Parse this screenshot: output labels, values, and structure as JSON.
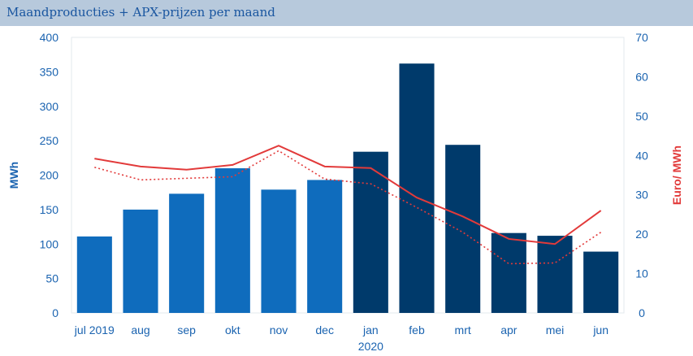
{
  "header": {
    "title": "Maandproducties + APX-prijzen per maand"
  },
  "chart_data": {
    "type": "bar",
    "categories": [
      "jul 2019",
      "aug",
      "sep",
      "okt",
      "nov",
      "dec",
      "jan",
      "feb",
      "mrt",
      "apr",
      "mei",
      "jun"
    ],
    "year_label": "2020",
    "ylabel": "MWh",
    "y2label": "Euro/ MWh",
    "ylim": [
      0,
      400
    ],
    "y2lim": [
      0,
      70
    ],
    "yticks": [
      0,
      50,
      100,
      150,
      200,
      250,
      300,
      350,
      400
    ],
    "y2ticks": [
      0,
      10,
      20,
      30,
      40,
      50,
      60,
      70
    ],
    "series": [
      {
        "kind": "bar",
        "values": [
          111,
          150,
          173,
          210,
          179,
          193,
          234,
          362,
          244,
          116,
          112,
          89
        ],
        "colors": [
          "#0f6cbd",
          "#0f6cbd",
          "#0f6cbd",
          "#0f6cbd",
          "#0f6cbd",
          "#0f6cbd",
          "#003a6b",
          "#003a6b",
          "#003a6b",
          "#003a6b",
          "#003a6b",
          "#003a6b"
        ]
      },
      {
        "kind": "line",
        "axis": "y2",
        "style": "solid",
        "color": "#e23a3a",
        "values": [
          39.2,
          37.2,
          36.4,
          37.6,
          42.5,
          37.2,
          36.8,
          29.3,
          24.5,
          18.8,
          17.5,
          26.0
        ]
      },
      {
        "kind": "line",
        "axis": "y2",
        "style": "dotted",
        "color": "#e23a3a",
        "values": [
          37.0,
          33.8,
          34.2,
          34.6,
          41.2,
          34.0,
          32.8,
          26.8,
          20.5,
          12.5,
          12.7,
          20.5
        ]
      }
    ],
    "grid": false,
    "legend": "none"
  }
}
